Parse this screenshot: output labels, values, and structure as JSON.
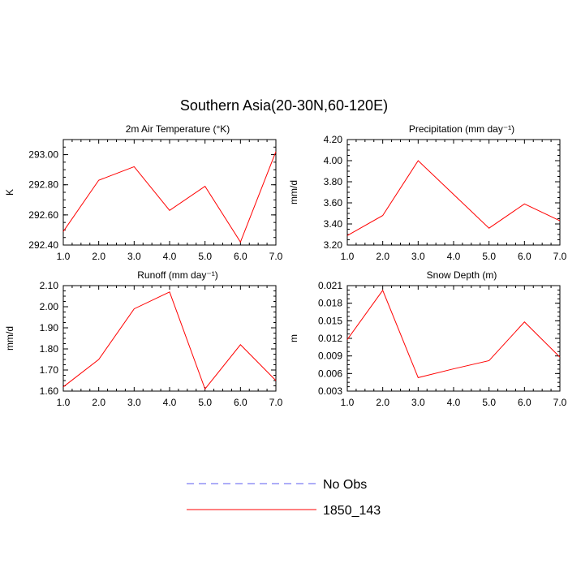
{
  "figure": {
    "title": "Southern Asia(20-30N,60-120E)"
  },
  "legend": {
    "entries": [
      {
        "label": "No Obs",
        "color": "#5b5bf0",
        "style": "dashed"
      },
      {
        "label": "1850_143",
        "color": "#ff0000",
        "style": "solid"
      }
    ]
  },
  "chart_data": [
    {
      "type": "line",
      "title": "2m Air Temperature (°K)",
      "ylabel": "K",
      "xlabel": "",
      "x": [
        1,
        2,
        3,
        4,
        5,
        6,
        7
      ],
      "xlim": [
        1,
        7
      ],
      "xticks": [
        "1.0",
        "2.0",
        "3.0",
        "4.0",
        "5.0",
        "6.0",
        "7.0"
      ],
      "ylim": [
        292.4,
        293.1
      ],
      "yticks": [
        "292.40",
        "292.60",
        "292.80",
        "293.00"
      ],
      "ytick_values": [
        292.4,
        292.6,
        292.8,
        293.0
      ],
      "series": [
        {
          "name": "1850_143",
          "color": "#ff0000",
          "values": [
            292.49,
            292.83,
            292.92,
            292.63,
            292.79,
            292.42,
            293.02
          ]
        }
      ]
    },
    {
      "type": "line",
      "title": "Precipitation (mm day⁻¹)",
      "ylabel": "mm/d",
      "xlabel": "",
      "x": [
        1,
        2,
        3,
        4,
        5,
        6,
        7
      ],
      "xlim": [
        1,
        7
      ],
      "xticks": [
        "1.0",
        "2.0",
        "3.0",
        "4.0",
        "5.0",
        "6.0",
        "7.0"
      ],
      "ylim": [
        3.2,
        4.2
      ],
      "yticks": [
        "3.20",
        "3.40",
        "3.60",
        "3.80",
        "4.00",
        "4.20"
      ],
      "ytick_values": [
        3.2,
        3.4,
        3.6,
        3.8,
        4.0,
        4.2
      ],
      "series": [
        {
          "name": "1850_143",
          "color": "#ff0000",
          "values": [
            3.29,
            3.48,
            4.0,
            3.68,
            3.36,
            3.59,
            3.43
          ]
        }
      ]
    },
    {
      "type": "line",
      "title": "Runoff (mm day⁻¹)",
      "ylabel": "mm/d",
      "xlabel": "",
      "x": [
        1,
        2,
        3,
        4,
        5,
        6,
        7
      ],
      "xlim": [
        1,
        7
      ],
      "xticks": [
        "1.0",
        "2.0",
        "3.0",
        "4.0",
        "5.0",
        "6.0",
        "7.0"
      ],
      "ylim": [
        1.6,
        2.1
      ],
      "yticks": [
        "1.60",
        "1.70",
        "1.80",
        "1.90",
        "2.00",
        "2.10"
      ],
      "ytick_values": [
        1.6,
        1.7,
        1.8,
        1.9,
        2.0,
        2.1
      ],
      "series": [
        {
          "name": "1850_143",
          "color": "#ff0000",
          "values": [
            1.62,
            1.75,
            1.99,
            2.07,
            1.61,
            1.82,
            1.65
          ]
        }
      ]
    },
    {
      "type": "line",
      "title": "Snow Depth (m)",
      "ylabel": "m",
      "xlabel": "",
      "x": [
        1,
        2,
        3,
        4,
        5,
        6,
        7
      ],
      "xlim": [
        1,
        7
      ],
      "xticks": [
        "1.0",
        "2.0",
        "3.0",
        "4.0",
        "5.0",
        "6.0",
        "7.0"
      ],
      "ylim": [
        0.003,
        0.021
      ],
      "yticks": [
        "0.003",
        "0.006",
        "0.009",
        "0.012",
        "0.015",
        "0.018",
        "0.021"
      ],
      "ytick_values": [
        0.003,
        0.006,
        0.009,
        0.012,
        0.015,
        0.018,
        0.021
      ],
      "series": [
        {
          "name": "1850_143",
          "color": "#ff0000",
          "values": [
            0.0118,
            0.0202,
            0.0053,
            0.0068,
            0.0082,
            0.0148,
            0.0088
          ]
        }
      ]
    }
  ]
}
